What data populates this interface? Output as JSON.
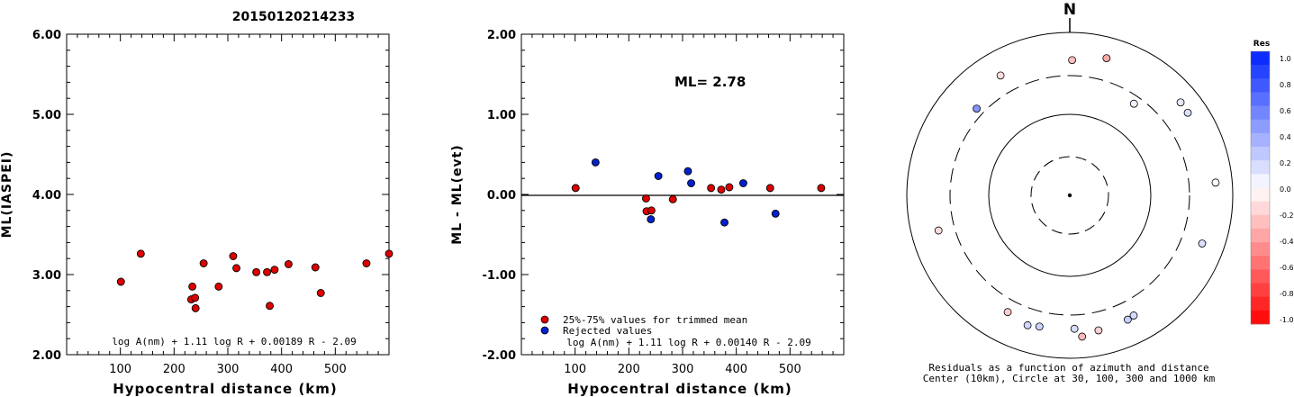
{
  "title": "20150120214233",
  "colors": {
    "accepted": "#dd0000",
    "rejected": "#0022cc",
    "axis": "#000000"
  },
  "chart_data": [
    {
      "type": "scatter",
      "xlabel": "Hypocentral distance (km)",
      "ylabel": "ML(IASPEI)",
      "xlim": [
        0,
        600
      ],
      "ylim": [
        2.0,
        6.0
      ],
      "x_ticks": [
        100,
        200,
        300,
        400,
        500
      ],
      "y_ticks": [
        "2.00",
        "3.00",
        "4.00",
        "5.00",
        "6.00"
      ],
      "formula": "log A(nm) + 1.11 log R + 0.00189 R - 2.09",
      "points": [
        {
          "x": 101,
          "y": 2.91
        },
        {
          "x": 138,
          "y": 3.26
        },
        {
          "x": 232,
          "y": 2.69
        },
        {
          "x": 234,
          "y": 2.85
        },
        {
          "x": 239,
          "y": 2.71
        },
        {
          "x": 240,
          "y": 2.58
        },
        {
          "x": 255,
          "y": 3.14
        },
        {
          "x": 283,
          "y": 2.85
        },
        {
          "x": 310,
          "y": 3.23
        },
        {
          "x": 316,
          "y": 3.08
        },
        {
          "x": 353,
          "y": 3.03
        },
        {
          "x": 373,
          "y": 3.03
        },
        {
          "x": 378,
          "y": 2.61
        },
        {
          "x": 387,
          "y": 3.06
        },
        {
          "x": 413,
          "y": 3.13
        },
        {
          "x": 463,
          "y": 3.09
        },
        {
          "x": 473,
          "y": 2.77
        },
        {
          "x": 558,
          "y": 3.14
        },
        {
          "x": 600,
          "y": 3.26
        }
      ]
    },
    {
      "type": "scatter",
      "xlabel": "Hypocentral distance (km)",
      "ylabel": "ML - ML(evt)",
      "xlim": [
        0,
        600
      ],
      "ylim": [
        -2.0,
        2.0
      ],
      "x_ticks": [
        100,
        200,
        300,
        400,
        500
      ],
      "y_ticks": [
        "-2.00",
        "-1.00",
        "0.00",
        "1.00",
        "2.00"
      ],
      "annotation": "ML= 2.78",
      "formula": "log A(nm) + 1.11 log R + 0.00140 R - 2.09",
      "legend": [
        {
          "label": "25%-75% values for trimmed mean",
          "color": "#dd0000"
        },
        {
          "label": "Rejected values",
          "color": "#0022cc"
        }
      ],
      "series": [
        {
          "name": "25%-75% values for trimmed mean",
          "points": [
            {
              "x": 101,
              "y": 0.08
            },
            {
              "x": 232,
              "y": -0.05
            },
            {
              "x": 233,
              "y": -0.21
            },
            {
              "x": 242,
              "y": -0.2
            },
            {
              "x": 282,
              "y": -0.06
            },
            {
              "x": 353,
              "y": 0.08
            },
            {
              "x": 372,
              "y": 0.06
            },
            {
              "x": 387,
              "y": 0.09
            },
            {
              "x": 463,
              "y": 0.08
            },
            {
              "x": 558,
              "y": 0.08
            }
          ]
        },
        {
          "name": "Rejected values",
          "points": [
            {
              "x": 138,
              "y": 0.4
            },
            {
              "x": 241,
              "y": -0.31
            },
            {
              "x": 255,
              "y": 0.23
            },
            {
              "x": 310,
              "y": 0.29
            },
            {
              "x": 316,
              "y": 0.14
            },
            {
              "x": 378,
              "y": -0.35
            },
            {
              "x": 413,
              "y": 0.14
            },
            {
              "x": 473,
              "y": -0.24
            }
          ]
        }
      ]
    },
    {
      "type": "polar-scatter",
      "north_label": "N",
      "caption_line1": "Residuals as a function of azimuth and distance",
      "caption_line2": "Center (10km), Circle at 30, 100, 300 and 1000 km",
      "radial_circles_km": [
        30,
        100,
        300,
        1000
      ],
      "colorbar": {
        "title": "Res",
        "labels": [
          "1.0",
          "0.8",
          "0.6",
          "0.4",
          "0.2",
          "0.0",
          "-0.2",
          "-0.4",
          "-0.6",
          "-0.8",
          "-1.0"
        ],
        "max_color": "#0022ff",
        "min_color": "#ff0000"
      },
      "stations": [
        {
          "azimuth_deg": 1,
          "distance_km": 463,
          "residual": -0.26
        },
        {
          "azimuth_deg": 15,
          "distance_km": 558,
          "residual": -0.34
        },
        {
          "azimuth_deg": 35,
          "distance_km": 240,
          "residual": 0.06
        },
        {
          "azimuth_deg": 50,
          "distance_km": 600,
          "residual": 0.1
        },
        {
          "azimuth_deg": 55,
          "distance_km": 590,
          "residual": 0.14
        },
        {
          "azimuth_deg": 85,
          "distance_km": 630,
          "residual": -0.02
        },
        {
          "azimuth_deg": 110,
          "distance_km": 540,
          "residual": 0.14
        },
        {
          "azimuth_deg": 152,
          "distance_km": 473,
          "residual": 0.16
        },
        {
          "azimuth_deg": 155,
          "distance_km": 487,
          "residual": 0.22
        },
        {
          "azimuth_deg": 168,
          "distance_km": 500,
          "residual": -0.18
        },
        {
          "azimuth_deg": 175,
          "distance_km": 555,
          "residual": -0.28
        },
        {
          "azimuth_deg": 178,
          "distance_km": 440,
          "residual": 0.16
        },
        {
          "azimuth_deg": 193,
          "distance_km": 455,
          "residual": 0.2
        },
        {
          "azimuth_deg": 198,
          "distance_km": 480,
          "residual": 0.18
        },
        {
          "azimuth_deg": 208,
          "distance_km": 425,
          "residual": -0.2
        },
        {
          "azimuth_deg": 255,
          "distance_km": 470,
          "residual": -0.14
        },
        {
          "azimuth_deg": 313,
          "distance_km": 370,
          "residual": 0.48
        },
        {
          "azimuth_deg": 330,
          "distance_km": 505,
          "residual": -0.14
        }
      ]
    }
  ]
}
